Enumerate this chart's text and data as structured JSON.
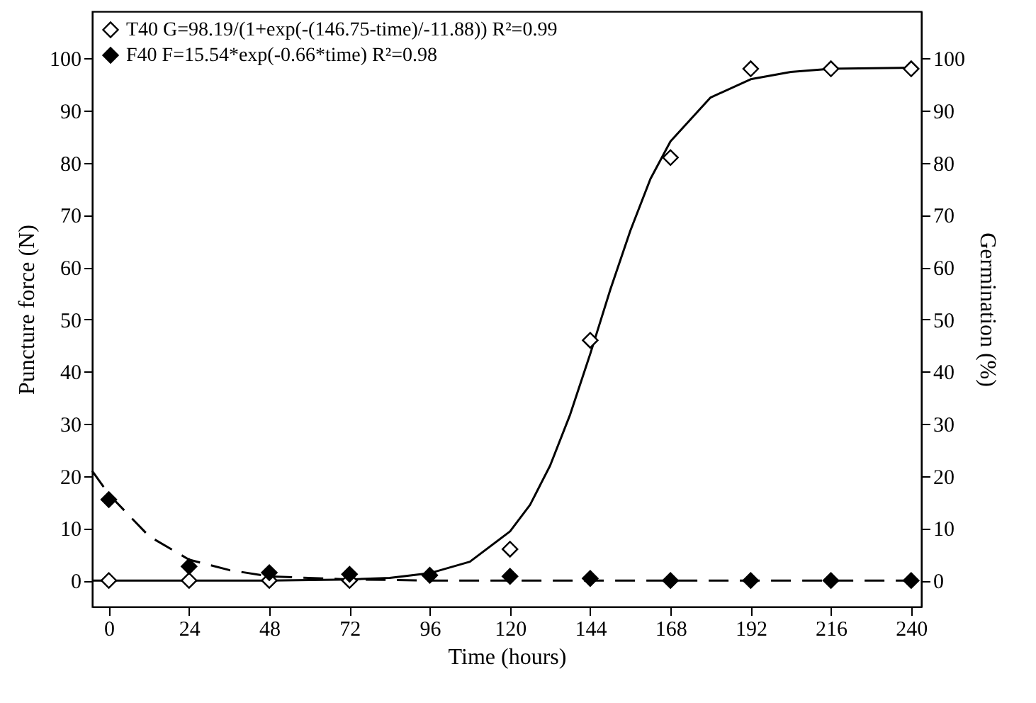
{
  "chart_data": {
    "type": "scatter",
    "xlabel": "Time (hours)",
    "ylabel": "Puncture force (N)",
    "y2label": "Germination (%)",
    "xlim": [
      -5,
      243
    ],
    "xticks": [
      0,
      24,
      48,
      72,
      96,
      120,
      144,
      168,
      192,
      216,
      240
    ],
    "ylim": [
      -5,
      109
    ],
    "yticks": [
      0,
      10,
      20,
      30,
      40,
      50,
      60,
      70,
      80,
      90,
      100
    ],
    "y2lim": [
      -5,
      109
    ],
    "y2ticks": [
      0,
      10,
      20,
      30,
      40,
      50,
      60,
      70,
      80,
      90,
      100
    ],
    "grid": false,
    "legend": "top left",
    "marker": "diamond",
    "series": [
      {
        "name": "T40  G=98.19/(1+exp(-(146.75-time)/-11.88))  R²=0.99",
        "color": "#ffffff",
        "x": [
          0,
          24,
          48,
          72,
          96,
          120,
          144,
          168,
          192,
          216,
          240
        ],
        "values": [
          0,
          0,
          0,
          0,
          null,
          6,
          46,
          81,
          98,
          98,
          98
        ]
      },
      {
        "name": "F40  F=15.54*exp(-0.66*time)  R²=0.98",
        "color": "#000000",
        "x": [
          0,
          24,
          48,
          72,
          96,
          120,
          144,
          168,
          192,
          216,
          240
        ],
        "values": [
          15.5,
          2.7,
          1.5,
          1.2,
          1.0,
          0.8,
          0.4,
          0,
          0,
          0,
          0
        ]
      },
      {
        "type": "line",
        "color": "#000000",
        "line_style": "solid",
        "marker": "none",
        "x": [
          -5,
          0,
          24,
          48,
          72,
          84,
          96,
          108,
          120,
          126,
          132,
          138,
          144,
          150,
          156,
          162,
          168,
          180,
          192,
          204,
          216,
          240
        ],
        "values": [
          0,
          0,
          0,
          0,
          0.2,
          0.5,
          1.4,
          3.6,
          9.4,
          14.5,
          22,
          31.8,
          43.4,
          55.7,
          67,
          76.9,
          84.1,
          92.5,
          96,
          97.4,
          98,
          98.2
        ]
      },
      {
        "type": "line",
        "color": "#000000",
        "line_style": "dashed",
        "marker": "none",
        "x": [
          -5,
          0,
          12,
          24,
          36,
          48,
          72,
          96,
          240
        ],
        "values": [
          21,
          16.5,
          8.5,
          4,
          2,
          0.8,
          0.2,
          0,
          0
        ]
      }
    ]
  }
}
